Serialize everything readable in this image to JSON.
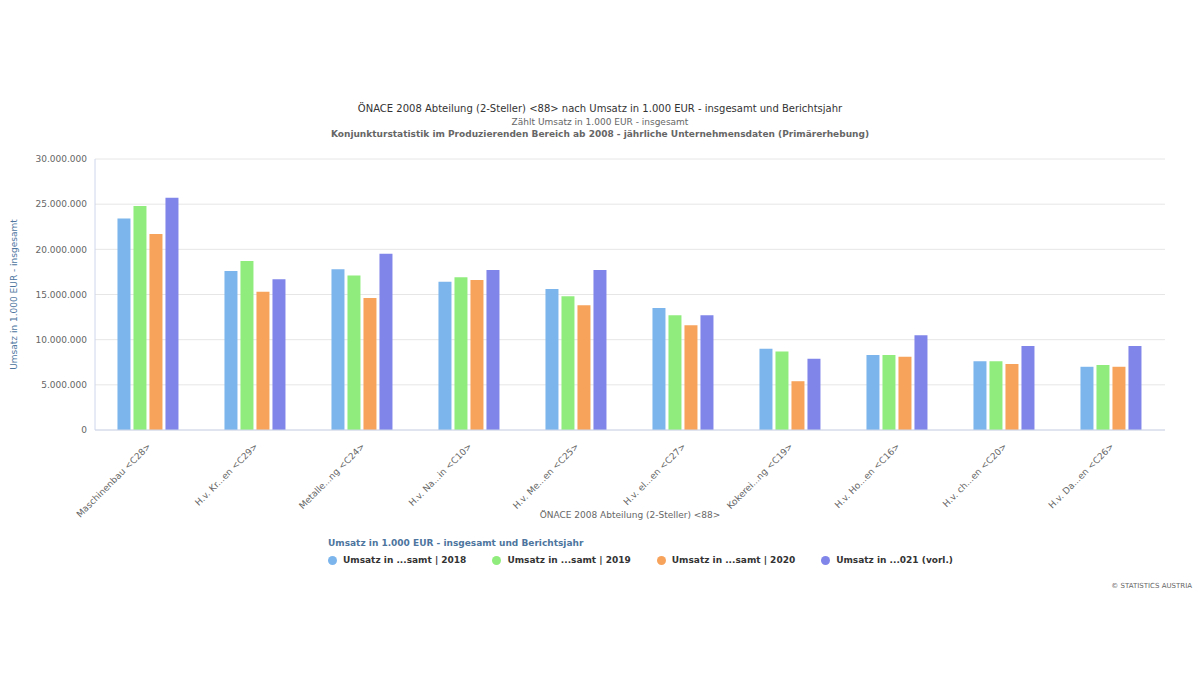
{
  "chart_data": {
    "type": "bar",
    "title": "ÖNACE 2008 Abteilung (2-Steller) <88> nach Umsatz in 1.000 EUR - insgesamt und Berichtsjahr",
    "subtitle": "Zählt Umsatz in 1.000 EUR - insgesamt",
    "subtitle2": "Konjunkturstatistik im Produzierenden Bereich ab 2008 - jährliche Unternehmensdaten (Primärerhebung)",
    "x_label": "ÖNACE 2008 Abteilung (2-Steller) <88>",
    "y_label": "Umsatz in 1.000 EUR - insgesamt",
    "legend_title": "Umsatz in 1.000 EUR - insgesamt und Berichtsjahr",
    "credits": "© STATISTICS AUSTRIA",
    "categories": [
      "Maschinenbau <C28>",
      "H.v. Kr...en <C29>",
      "Metalle...ng <C24>",
      "H.v. Na...in <C10>",
      "H.v. Me...en <C25>",
      "H.v. el...en <C27>",
      "Kokerei...ng <C19>",
      "H.v. Ho...en <C16>",
      "H.v. ch...en <C20>",
      "H.v. Da...en <C26>"
    ],
    "series": [
      {
        "name": "Umsatz in ...samt | 2018",
        "color": "#7cb5ec",
        "values": [
          23400000,
          17600000,
          17800000,
          16400000,
          15600000,
          13500000,
          9000000,
          8300000,
          7600000,
          7000000
        ]
      },
      {
        "name": "Umsatz in ...samt | 2019",
        "color": "#90ed7d",
        "values": [
          24800000,
          18700000,
          17100000,
          16900000,
          14800000,
          12700000,
          8700000,
          8300000,
          7600000,
          7200000
        ]
      },
      {
        "name": "Umsatz in ...samt | 2020",
        "color": "#f7a35c",
        "values": [
          21700000,
          15300000,
          14600000,
          16600000,
          13800000,
          11600000,
          5400000,
          8100000,
          7300000,
          7000000
        ]
      },
      {
        "name": "Umsatz in ...021 (vorl.)",
        "color": "#8085e9",
        "values": [
          25700000,
          16700000,
          19500000,
          17700000,
          17700000,
          12700000,
          7900000,
          10500000,
          9300000,
          9300000
        ]
      }
    ],
    "ylim": [
      0,
      30000000
    ],
    "yticks": [
      0,
      {
        "value": 5000000,
        "label": "5.000.000"
      },
      {
        "value": 10000000,
        "label": "10.000.000"
      },
      {
        "value": 15000000,
        "label": "15.000.000"
      },
      {
        "value": 20000000,
        "label": "20.000.000"
      },
      {
        "value": 25000000,
        "label": "25.000.000"
      },
      {
        "value": 30000000,
        "label": "30.000.000"
      }
    ],
    "grid": true,
    "legend": "bottom"
  }
}
